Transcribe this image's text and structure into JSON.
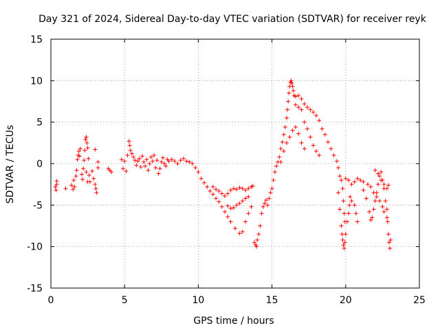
{
  "chart_data": {
    "type": "scatter",
    "title": "Day 321 of 2024, Sidereal Day-to-day VTEC variation (SDTVAR) for receiver reyk",
    "xlabel": "GPS time / hours",
    "ylabel": "SDTVAR / TECUs",
    "xlim": [
      0,
      25
    ],
    "ylim": [
      -15,
      15
    ],
    "xticks": [
      0,
      5,
      10,
      15,
      20,
      25
    ],
    "yticks": [
      -15,
      -10,
      -5,
      0,
      5,
      10,
      15
    ],
    "xtick_labels": [
      "0",
      "5",
      "10",
      "15",
      "20",
      "25"
    ],
    "ytick_labels": [
      "-15",
      "-10",
      "-5",
      "0",
      "5",
      "10",
      "15"
    ],
    "grid": true,
    "marker": "plus",
    "color": "#ff0000",
    "series": [
      {
        "name": "SDTVAR",
        "points": [
          [
            0.3,
            -2.8
          ],
          [
            0.35,
            -3.2
          ],
          [
            0.4,
            -2.5
          ],
          [
            0.4,
            -2.1
          ],
          [
            1.0,
            -3.0
          ],
          [
            1.4,
            -2.6
          ],
          [
            1.5,
            -3.1
          ],
          [
            1.55,
            -2.0
          ],
          [
            1.6,
            -2.8
          ],
          [
            1.7,
            -1.5
          ],
          [
            1.75,
            -0.8
          ],
          [
            1.8,
            0.5
          ],
          [
            1.85,
            1.0
          ],
          [
            1.9,
            1.5
          ],
          [
            1.95,
            0.9
          ],
          [
            2.0,
            1.8
          ],
          [
            2.1,
            -1.3
          ],
          [
            2.15,
            -1.9
          ],
          [
            2.2,
            -0.6
          ],
          [
            2.25,
            0.4
          ],
          [
            2.3,
            1.6
          ],
          [
            2.35,
            2.9
          ],
          [
            2.4,
            3.2
          ],
          [
            2.45,
            2.5
          ],
          [
            2.5,
            1.9
          ],
          [
            2.55,
            0.6
          ],
          [
            2.6,
            -1.4
          ],
          [
            2.65,
            -2.2
          ],
          [
            2.5,
            -2.2
          ],
          [
            2.4,
            -1.0
          ],
          [
            2.8,
            -0.9
          ],
          [
            2.9,
            -1.8
          ],
          [
            3.0,
            -2.5
          ],
          [
            3.05,
            -3.0
          ],
          [
            3.1,
            -3.5
          ],
          [
            3.0,
            1.7
          ],
          [
            3.2,
            -0.5
          ],
          [
            3.2,
            0.2
          ],
          [
            3.9,
            -0.6
          ],
          [
            4.0,
            -0.8
          ],
          [
            4.1,
            -1.0
          ],
          [
            4.8,
            0.5
          ],
          [
            4.9,
            -0.6
          ],
          [
            5.0,
            0.3
          ],
          [
            5.1,
            -0.9
          ],
          [
            5.2,
            1.0
          ],
          [
            5.3,
            2.7
          ],
          [
            5.35,
            2.2
          ],
          [
            5.4,
            1.6
          ],
          [
            5.5,
            1.2
          ],
          [
            5.6,
            0.8
          ],
          [
            5.7,
            0.4
          ],
          [
            5.8,
            -0.2
          ],
          [
            5.9,
            0.3
          ],
          [
            6.0,
            0.6
          ],
          [
            6.1,
            -0.4
          ],
          [
            6.2,
            0.9
          ],
          [
            6.3,
            0.2
          ],
          [
            6.4,
            -0.3
          ],
          [
            6.5,
            0.5
          ],
          [
            6.6,
            -0.8
          ],
          [
            6.7,
            0.0
          ],
          [
            6.8,
            0.8
          ],
          [
            6.9,
            0.3
          ],
          [
            7.0,
            1.0
          ],
          [
            7.1,
            -0.5
          ],
          [
            7.2,
            0.4
          ],
          [
            7.3,
            -1.2
          ],
          [
            7.4,
            -0.6
          ],
          [
            7.5,
            0.2
          ],
          [
            7.6,
            0.7
          ],
          [
            7.7,
            0.0
          ],
          [
            7.8,
            -0.3
          ],
          [
            7.9,
            0.5
          ],
          [
            8.0,
            0.3
          ],
          [
            8.2,
            0.5
          ],
          [
            8.4,
            0.3
          ],
          [
            8.6,
            0.0
          ],
          [
            8.8,
            0.4
          ],
          [
            9.0,
            0.6
          ],
          [
            9.2,
            0.3
          ],
          [
            9.4,
            0.2
          ],
          [
            9.6,
            0.0
          ],
          [
            9.8,
            -0.5
          ],
          [
            10.0,
            -1.0
          ],
          [
            10.2,
            -1.8
          ],
          [
            10.4,
            -2.3
          ],
          [
            10.6,
            -2.8
          ],
          [
            10.8,
            -3.3
          ],
          [
            11.0,
            -3.7
          ],
          [
            11.2,
            -4.2
          ],
          [
            11.4,
            -4.6
          ],
          [
            11.6,
            -5.2
          ],
          [
            11.8,
            -5.8
          ],
          [
            12.0,
            -6.4
          ],
          [
            11.0,
            -2.8
          ],
          [
            11.2,
            -3.1
          ],
          [
            11.4,
            -3.3
          ],
          [
            11.6,
            -3.6
          ],
          [
            11.8,
            -3.9
          ],
          [
            12.0,
            -3.6
          ],
          [
            12.2,
            -3.2
          ],
          [
            12.4,
            -3.0
          ],
          [
            12.6,
            -3.1
          ],
          [
            12.8,
            -2.9
          ],
          [
            13.0,
            -3.0
          ],
          [
            13.2,
            -3.2
          ],
          [
            13.4,
            -3.0
          ],
          [
            13.6,
            -2.8
          ],
          [
            13.7,
            -2.7
          ],
          [
            12.0,
            -5.1
          ],
          [
            12.2,
            -5.4
          ],
          [
            12.4,
            -5.3
          ],
          [
            12.6,
            -5.0
          ],
          [
            12.8,
            -4.8
          ],
          [
            13.0,
            -4.5
          ],
          [
            13.2,
            -4.2
          ],
          [
            13.4,
            -4.0
          ],
          [
            12.2,
            -7.0
          ],
          [
            12.5,
            -7.8
          ],
          [
            12.8,
            -8.4
          ],
          [
            13.0,
            -8.2
          ],
          [
            13.2,
            -7.0
          ],
          [
            13.4,
            -6.0
          ],
          [
            13.6,
            -5.2
          ],
          [
            13.8,
            -9.5
          ],
          [
            13.9,
            -9.8
          ],
          [
            13.95,
            -10.0
          ],
          [
            14.0,
            -9.2
          ],
          [
            14.1,
            -8.5
          ],
          [
            14.2,
            -7.5
          ],
          [
            14.3,
            -6.0
          ],
          [
            14.4,
            -5.2
          ],
          [
            14.5,
            -4.8
          ],
          [
            14.6,
            -4.4
          ],
          [
            14.7,
            -5.0
          ],
          [
            14.8,
            -4.2
          ],
          [
            14.9,
            -3.5
          ],
          [
            15.0,
            -3.0
          ],
          [
            15.1,
            -2.0
          ],
          [
            15.2,
            -1.0
          ],
          [
            15.3,
            -0.3
          ],
          [
            15.4,
            0.2
          ],
          [
            15.5,
            0.8
          ],
          [
            15.6,
            1.8
          ],
          [
            15.7,
            2.6
          ],
          [
            15.8,
            3.5
          ],
          [
            15.9,
            4.4
          ],
          [
            16.0,
            5.5
          ],
          [
            16.05,
            6.5
          ],
          [
            16.1,
            7.5
          ],
          [
            16.15,
            8.5
          ],
          [
            16.2,
            9.3
          ],
          [
            16.25,
            9.8
          ],
          [
            16.3,
            10.0
          ],
          [
            16.35,
            9.7
          ],
          [
            16.4,
            9.3
          ],
          [
            16.45,
            8.8
          ],
          [
            16.5,
            8.2
          ],
          [
            15.6,
            0.2
          ],
          [
            15.8,
            1.5
          ],
          [
            16.0,
            2.5
          ],
          [
            16.2,
            3.2
          ],
          [
            16.4,
            4.0
          ],
          [
            16.6,
            4.4
          ],
          [
            16.8,
            3.6
          ],
          [
            17.0,
            2.5
          ],
          [
            17.2,
            1.8
          ],
          [
            16.6,
            7.1
          ],
          [
            16.8,
            6.8
          ],
          [
            17.0,
            6.5
          ],
          [
            17.2,
            5.0
          ],
          [
            17.4,
            4.2
          ],
          [
            17.6,
            3.2
          ],
          [
            17.8,
            2.2
          ],
          [
            18.0,
            1.5
          ],
          [
            18.2,
            1.0
          ],
          [
            16.6,
            8.1
          ],
          [
            16.8,
            8.2
          ],
          [
            17.0,
            7.8
          ],
          [
            17.2,
            7.2
          ],
          [
            17.4,
            6.8
          ],
          [
            17.6,
            6.5
          ],
          [
            17.8,
            6.2
          ],
          [
            18.0,
            5.8
          ],
          [
            18.2,
            5.2
          ],
          [
            18.4,
            4.2
          ],
          [
            18.6,
            3.5
          ],
          [
            18.8,
            2.6
          ],
          [
            19.0,
            1.8
          ],
          [
            19.2,
            1.0
          ],
          [
            19.4,
            0.3
          ],
          [
            19.5,
            -0.5
          ],
          [
            19.6,
            -1.5
          ],
          [
            19.7,
            -2.0
          ],
          [
            19.5,
            -3.5
          ],
          [
            19.6,
            -5.5
          ],
          [
            19.7,
            -7.5
          ],
          [
            19.75,
            -8.5
          ],
          [
            19.8,
            -9.2
          ],
          [
            19.85,
            -9.8
          ],
          [
            19.9,
            -10.2
          ],
          [
            19.95,
            -9.5
          ],
          [
            20.0,
            -8.5
          ],
          [
            20.1,
            -7.0
          ],
          [
            20.2,
            -6.0
          ],
          [
            20.25,
            -5.0
          ],
          [
            20.3,
            -4.0
          ],
          [
            19.8,
            -3.0
          ],
          [
            19.85,
            -4.5
          ],
          [
            19.9,
            -6.0
          ],
          [
            19.95,
            -7.0
          ],
          [
            20.0,
            -1.8
          ],
          [
            20.2,
            -2.0
          ],
          [
            20.4,
            -2.5
          ],
          [
            20.6,
            -2.2
          ],
          [
            20.8,
            -1.8
          ],
          [
            21.0,
            -2.0
          ],
          [
            21.2,
            -2.2
          ],
          [
            20.4,
            -4.5
          ],
          [
            20.6,
            -5.0
          ],
          [
            20.7,
            -6.0
          ],
          [
            20.8,
            -7.0
          ],
          [
            21.2,
            -3.2
          ],
          [
            21.4,
            -4.2
          ],
          [
            21.6,
            -5.8
          ],
          [
            21.7,
            -6.8
          ],
          [
            21.8,
            -6.5
          ],
          [
            21.9,
            -5.5
          ],
          [
            22.0,
            -4.5
          ],
          [
            22.1,
            -3.5
          ],
          [
            22.2,
            -2.5
          ],
          [
            22.3,
            -1.5
          ],
          [
            22.4,
            -1.0
          ],
          [
            22.5,
            -2.0
          ],
          [
            22.6,
            -3.0
          ],
          [
            22.7,
            -4.5
          ],
          [
            22.8,
            -5.5
          ],
          [
            21.5,
            -2.5
          ],
          [
            21.7,
            -2.8
          ],
          [
            21.9,
            -3.5
          ],
          [
            22.1,
            -4.0
          ],
          [
            22.3,
            -4.5
          ],
          [
            22.5,
            -5.2
          ],
          [
            22.6,
            -5.8
          ],
          [
            22.0,
            -0.8
          ],
          [
            22.2,
            -1.2
          ],
          [
            22.4,
            -2.0
          ],
          [
            22.6,
            -2.5
          ],
          [
            22.8,
            -3.0
          ],
          [
            22.9,
            -2.6
          ],
          [
            22.8,
            -6.5
          ],
          [
            22.85,
            -7.0
          ],
          [
            22.9,
            -8.5
          ],
          [
            22.95,
            -9.5
          ],
          [
            23.0,
            -10.2
          ],
          [
            23.05,
            -9.2
          ]
        ]
      }
    ]
  }
}
